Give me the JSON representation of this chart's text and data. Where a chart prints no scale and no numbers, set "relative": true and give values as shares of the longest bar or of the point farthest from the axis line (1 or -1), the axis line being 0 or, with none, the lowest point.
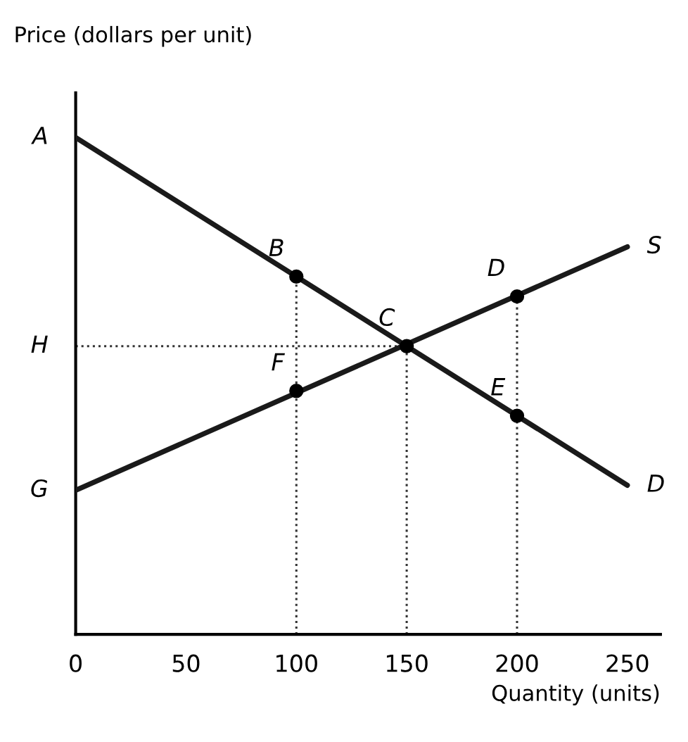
{
  "chart_data": {
    "type": "line",
    "relative": true,
    "xlabel": "Quantity (units)",
    "ylabel": "Price (dollars per unit)",
    "xlim": [
      0,
      265
    ],
    "xticks": [
      0,
      50,
      100,
      150,
      200,
      250
    ],
    "grid": false,
    "legend": false,
    "marker": "none",
    "line_style": "solid",
    "series": [
      {
        "name": "D",
        "color": "#1a1a1a",
        "x": [
          0,
          250
        ],
        "values": [
          1,
          0.3
        ]
      },
      {
        "name": "S",
        "color": "#1a1a1a",
        "x": [
          0,
          250
        ],
        "values": [
          0.29,
          0.78
        ]
      },
      {
        "type": "scatter",
        "color": "#000000",
        "marker": "circle",
        "x": [
          100,
          150,
          200,
          100,
          200
        ],
        "values": [
          0.72,
          0.58,
          0.68,
          0.49,
          0.44
        ]
      }
    ],
    "ref_lines": [
      {
        "axis": "y",
        "value": 0.58,
        "label": "H",
        "line_style": "dotted",
        "color": "#333333"
      },
      {
        "axis": "x",
        "value": 100,
        "line_style": "dotted",
        "color": "#333333"
      },
      {
        "axis": "x",
        "value": 150,
        "line_style": "dotted",
        "color": "#333333"
      },
      {
        "axis": "x",
        "value": 200,
        "line_style": "dotted",
        "color": "#333333"
      }
    ],
    "annotations": [
      {
        "text": "A",
        "x": 0,
        "y": 1
      },
      {
        "text": "G",
        "x": 0,
        "y": 0.29
      },
      {
        "text": "B",
        "x": 100,
        "y": 0.72
      },
      {
        "text": "C",
        "x": 150,
        "y": 0.58
      },
      {
        "text": "D",
        "x": 200,
        "y": 0.68
      },
      {
        "text": "E",
        "x": 200,
        "y": 0.44
      },
      {
        "text": "F",
        "x": 100,
        "y": 0.49
      }
    ]
  }
}
